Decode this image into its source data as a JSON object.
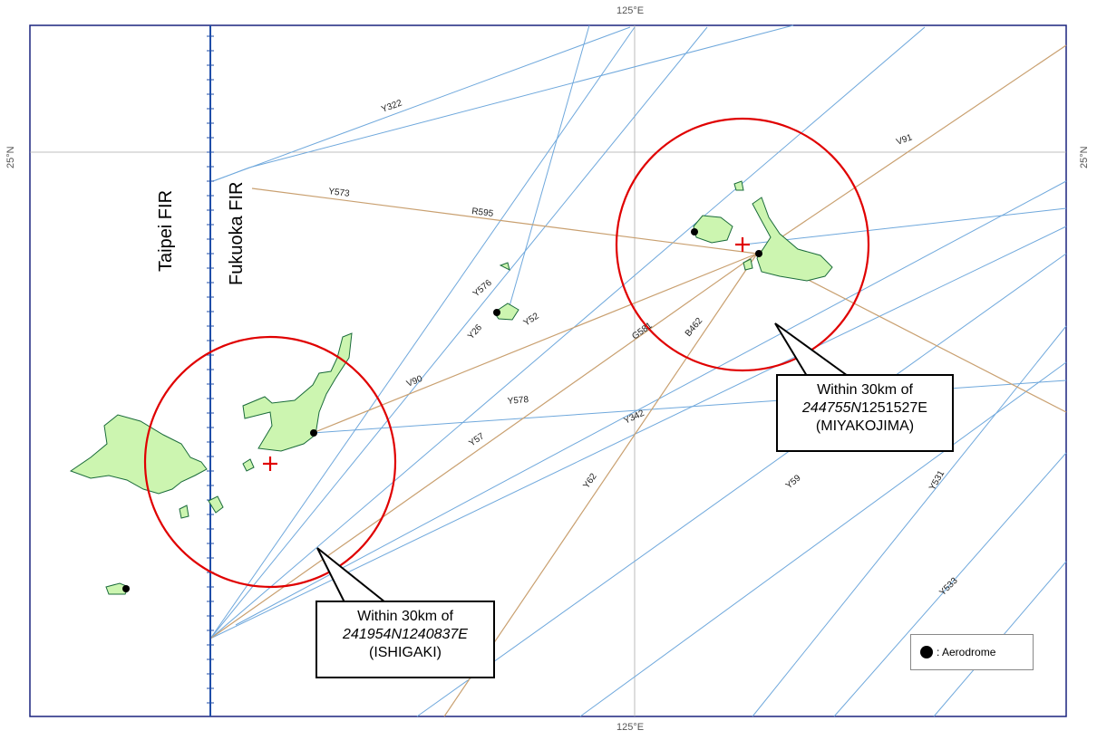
{
  "grid": {
    "lon_label": "125°E",
    "lat_label": "25°N"
  },
  "fir": {
    "west": "Taipei FIR",
    "east": "Fukuoka FIR"
  },
  "routes": [
    "Y322",
    "Y573",
    "R595",
    "Y576",
    "Y26",
    "Y52",
    "G581",
    "B462",
    "V90",
    "Y578",
    "Y342",
    "Y57",
    "Y62",
    "Y59",
    "Y531",
    "Y533",
    "V91"
  ],
  "callouts": {
    "miyakojima": {
      "line1": "Within 30km of",
      "coord_part1": "244755N",
      "coord_part2": "1251527E",
      "line3": "(MIYAKOJIMA)"
    },
    "ishigaki": {
      "line1": "Within 30km of",
      "coord": "241954N1240837E",
      "line3": "(ISHIGAKI)"
    }
  },
  "legend": {
    "label": ": Aerodrome"
  },
  "colors": {
    "route_blue": "#6fa8dc",
    "route_tan": "#c9a070",
    "circle": "#e00000",
    "land": "#ccf5b0",
    "coast": "#1a6b3a",
    "fir_line": "#1f4ea8"
  }
}
